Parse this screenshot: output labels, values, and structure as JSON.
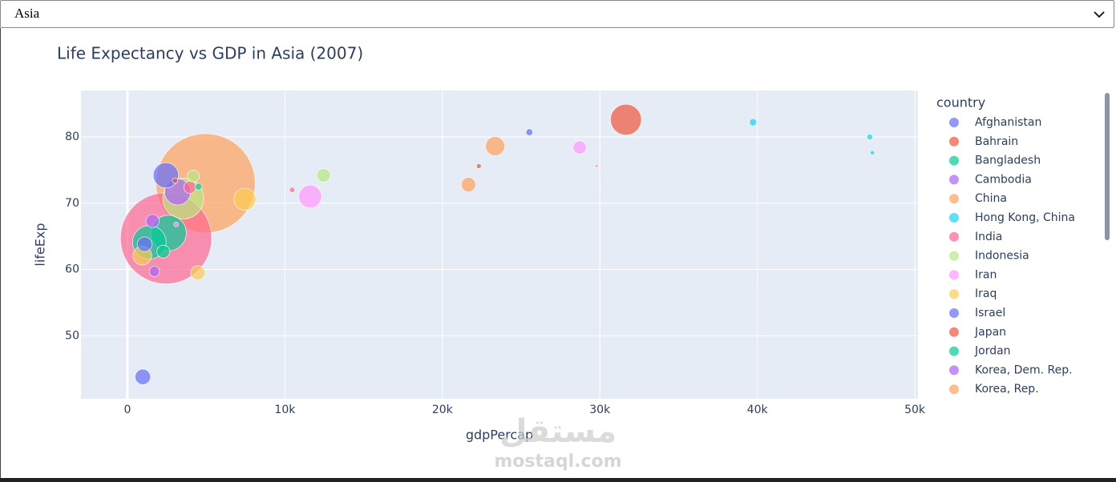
{
  "dropdown": {
    "selected": "Asia"
  },
  "watermark": [
    "مستقل",
    "mostaql.com"
  ],
  "chart_data": {
    "type": "scatter",
    "title": "Life Expectancy vs GDP in Asia (2007)",
    "x_label": "gdpPercap",
    "y_label": "lifeExp",
    "legend_title": "country",
    "xlim": [
      -2950,
      50200
    ],
    "ylim": [
      40.5,
      87
    ],
    "xticks": [
      0,
      {
        "value": 10000,
        "label": "10k"
      },
      {
        "value": 20000,
        "label": "20k"
      },
      {
        "value": 30000,
        "label": "30k"
      },
      {
        "value": 40000,
        "label": "40k"
      },
      {
        "value": 50000,
        "label": "50k"
      }
    ],
    "yticks": [
      50,
      60,
      70,
      80
    ],
    "grid": true,
    "legend": "right",
    "series": [
      {
        "name": "Afghanistan",
        "color": "#636efa",
        "x": [
          975
        ],
        "y": [
          43.8
        ],
        "size": [
          31.9
        ]
      },
      {
        "name": "Bahrain",
        "color": "#EF553B",
        "x": [
          29796
        ],
        "y": [
          75.6
        ],
        "size": [
          0.7
        ]
      },
      {
        "name": "Bangladesh",
        "color": "#00cc96",
        "x": [
          1391
        ],
        "y": [
          64.1
        ],
        "size": [
          150.4
        ]
      },
      {
        "name": "Cambodia",
        "color": "#ab63fa",
        "x": [
          1714
        ],
        "y": [
          59.7
        ],
        "size": [
          14.1
        ]
      },
      {
        "name": "China",
        "color": "#FFA15A",
        "x": [
          4959
        ],
        "y": [
          73.0
        ],
        "size": [
          1318.7
        ]
      },
      {
        "name": "Hong Kong, China",
        "color": "#19d3f3",
        "x": [
          39725
        ],
        "y": [
          82.2
        ],
        "size": [
          7.0
        ]
      },
      {
        "name": "India",
        "color": "#FF6692",
        "x": [
          2452
        ],
        "y": [
          64.7
        ],
        "size": [
          1110.4
        ]
      },
      {
        "name": "Indonesia",
        "color": "#B6E880",
        "x": [
          3541
        ],
        "y": [
          70.7
        ],
        "size": [
          223.5
        ]
      },
      {
        "name": "Iran",
        "color": "#FF97FF",
        "x": [
          11606
        ],
        "y": [
          71.0
        ],
        "size": [
          69.5
        ]
      },
      {
        "name": "Iraq",
        "color": "#FECB52",
        "x": [
          4471
        ],
        "y": [
          59.5
        ],
        "size": [
          27.5
        ]
      },
      {
        "name": "Israel",
        "color": "#636efa",
        "x": [
          25523
        ],
        "y": [
          80.7
        ],
        "size": [
          6.4
        ]
      },
      {
        "name": "Japan",
        "color": "#EF553B",
        "x": [
          31656
        ],
        "y": [
          82.6
        ],
        "size": [
          127.5
        ]
      },
      {
        "name": "Jordan",
        "color": "#00cc96",
        "x": [
          4519
        ],
        "y": [
          72.5
        ],
        "size": [
          6.1
        ]
      },
      {
        "name": "Korea, Dem. Rep.",
        "color": "#ab63fa",
        "x": [
          1593
        ],
        "y": [
          67.3
        ],
        "size": [
          23.3
        ]
      },
      {
        "name": "Korea, Rep.",
        "color": "#FFA15A",
        "x": [
          23348
        ],
        "y": [
          78.6
        ],
        "size": [
          49.0
        ]
      },
      {
        "color": "#19d3f3",
        "x": [
          47307
        ],
        "y": [
          77.6
        ],
        "size": [
          2.5
        ]
      },
      {
        "color": "#FF6692",
        "x": [
          10461
        ],
        "y": [
          72.0
        ],
        "size": [
          4.0
        ]
      },
      {
        "color": "#B6E880",
        "x": [
          12452
        ],
        "y": [
          74.2
        ],
        "size": [
          24.8
        ]
      },
      {
        "color": "#FF97FF",
        "x": [
          3096
        ],
        "y": [
          66.8
        ],
        "size": [
          2.9
        ]
      },
      {
        "color": "#FECB52",
        "x": [
          944
        ],
        "y": [
          62.1
        ],
        "size": [
          47.8
        ]
      },
      {
        "color": "#636efa",
        "x": [
          1091
        ],
        "y": [
          63.8
        ],
        "size": [
          28.9
        ]
      },
      {
        "color": "#EF553B",
        "x": [
          22316
        ],
        "y": [
          75.6
        ],
        "size": [
          3.2
        ]
      },
      {
        "color": "#00cc96",
        "x": [
          2606
        ],
        "y": [
          65.5
        ],
        "size": [
          169.3
        ]
      },
      {
        "color": "#ab63fa",
        "x": [
          3190
        ],
        "y": [
          71.7
        ],
        "size": [
          91.1
        ]
      },
      {
        "color": "#FFA15A",
        "x": [
          21655
        ],
        "y": [
          72.8
        ],
        "size": [
          27.6
        ]
      },
      {
        "color": "#19d3f3",
        "x": [
          47143
        ],
        "y": [
          80.0
        ],
        "size": [
          4.6
        ]
      },
      {
        "color": "#FF6692",
        "x": [
          3970
        ],
        "y": [
          72.4
        ],
        "size": [
          20.4
        ]
      },
      {
        "color": "#B6E880",
        "x": [
          4185
        ],
        "y": [
          74.1
        ],
        "size": [
          19.3
        ]
      },
      {
        "color": "#FF97FF",
        "x": [
          28718
        ],
        "y": [
          78.4
        ],
        "size": [
          23.2
        ]
      },
      {
        "color": "#FECB52",
        "x": [
          7458
        ],
        "y": [
          70.6
        ],
        "size": [
          65.1
        ]
      },
      {
        "color": "#636efa",
        "x": [
          2442
        ],
        "y": [
          74.2
        ],
        "size": [
          85.3
        ]
      },
      {
        "color": "#EF553B",
        "x": [
          3025
        ],
        "y": [
          73.4
        ],
        "size": [
          4.0
        ]
      },
      {
        "color": "#00cc96",
        "x": [
          2281
        ],
        "y": [
          62.7
        ],
        "size": [
          22.2
        ]
      }
    ]
  }
}
